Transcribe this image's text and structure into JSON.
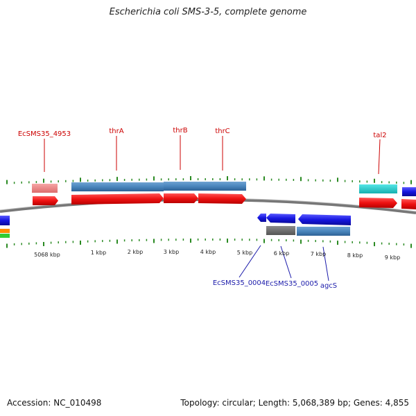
{
  "title": "Escherichia coli SMS-3-5, complete genome",
  "footer": {
    "accession": "Accession: NC_010498",
    "summary": "Topology: circular; Length: 5,068,389 bp; Genes: 4,855"
  },
  "colors": {
    "backbone": "#777777",
    "forward_cds": "#ee1111",
    "reverse_cds": "#1616e0",
    "gene_blue": "#4a86bd",
    "gene_pink": "#ee8888",
    "gene_teal": "#22cccc",
    "gene_gray": "#6f6f6f",
    "tick": "#2a8a22",
    "label_forward": "#cc0000",
    "label_reverse": "#1a1aaa"
  },
  "scale_labels": [
    "5068 kbp",
    "1 kbp",
    "2 kbp",
    "3 kbp",
    "4 kbp",
    "5 kbp",
    "6 kbp",
    "7 kbp",
    "8 kbp",
    "9 kbp"
  ],
  "forward_gene_labels": [
    "EcSMS35_4953",
    "thrA",
    "thrB",
    "thrC",
    "tal2"
  ],
  "reverse_gene_labels": [
    "EcSMS35_0004",
    "EcSMS35_0005",
    "agcS"
  ]
}
